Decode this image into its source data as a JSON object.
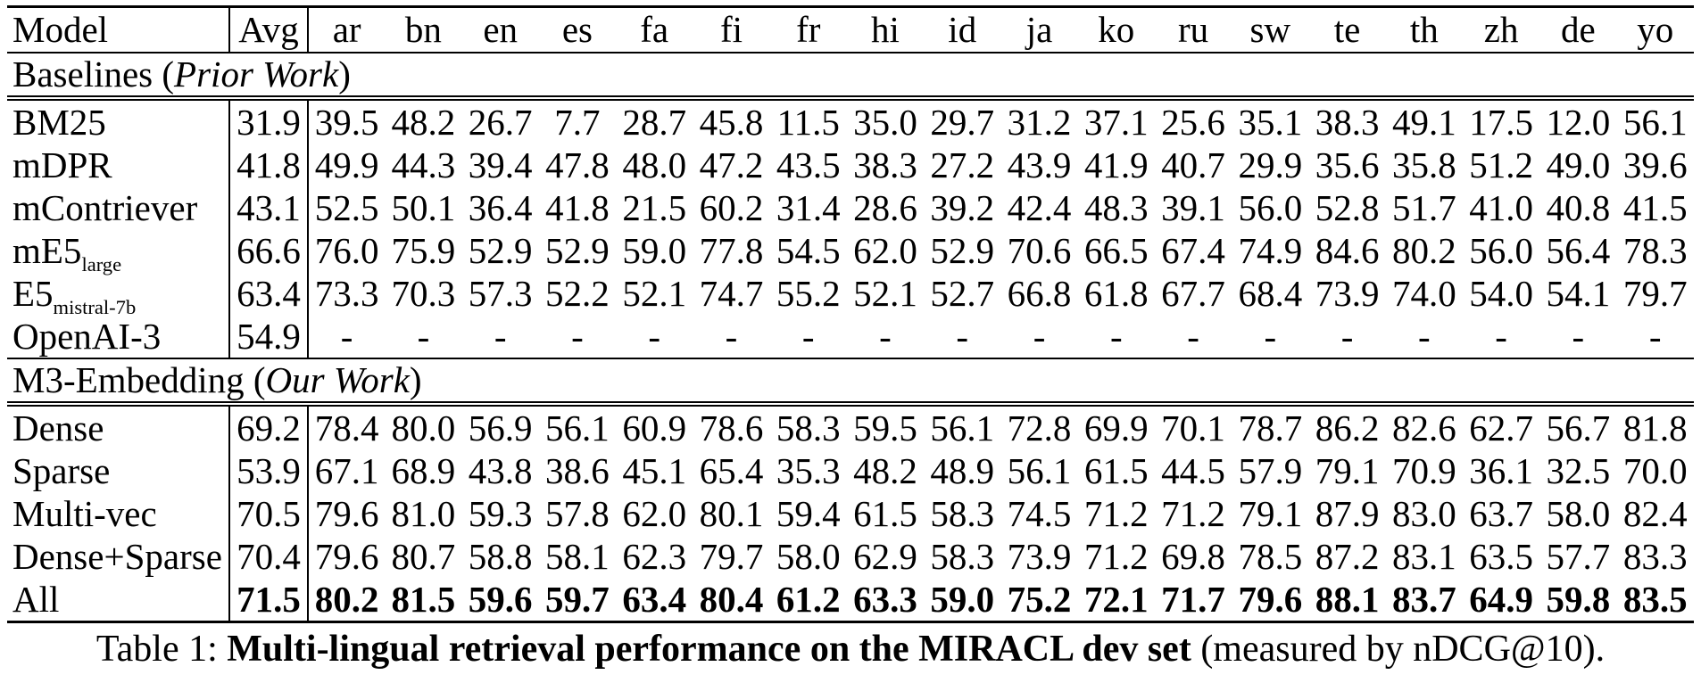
{
  "colors": {
    "text": "#000000",
    "background": "#ffffff",
    "rule": "#000000"
  },
  "table": {
    "columns": [
      "Model",
      "Avg",
      "ar",
      "bn",
      "en",
      "es",
      "fa",
      "fi",
      "fr",
      "hi",
      "id",
      "ja",
      "ko",
      "ru",
      "sw",
      "te",
      "th",
      "zh",
      "de",
      "yo"
    ],
    "sections": [
      {
        "title_pre": "Baselines (",
        "title_italic": "Prior Work",
        "title_post": ")",
        "rows": [
          {
            "model": "BM25",
            "model_sub": "",
            "avg": "31.9",
            "bold": false,
            "values": [
              "39.5",
              "48.2",
              "26.7",
              "7.7",
              "28.7",
              "45.8",
              "11.5",
              "35.0",
              "29.7",
              "31.2",
              "37.1",
              "25.6",
              "35.1",
              "38.3",
              "49.1",
              "17.5",
              "12.0",
              "56.1"
            ]
          },
          {
            "model": "mDPR",
            "model_sub": "",
            "avg": "41.8",
            "bold": false,
            "values": [
              "49.9",
              "44.3",
              "39.4",
              "47.8",
              "48.0",
              "47.2",
              "43.5",
              "38.3",
              "27.2",
              "43.9",
              "41.9",
              "40.7",
              "29.9",
              "35.6",
              "35.8",
              "51.2",
              "49.0",
              "39.6"
            ]
          },
          {
            "model": "mContriever",
            "model_sub": "",
            "avg": "43.1",
            "bold": false,
            "values": [
              "52.5",
              "50.1",
              "36.4",
              "41.8",
              "21.5",
              "60.2",
              "31.4",
              "28.6",
              "39.2",
              "42.4",
              "48.3",
              "39.1",
              "56.0",
              "52.8",
              "51.7",
              "41.0",
              "40.8",
              "41.5"
            ]
          },
          {
            "model": "mE5",
            "model_sub": "large",
            "avg": "66.6",
            "bold": false,
            "values": [
              "76.0",
              "75.9",
              "52.9",
              "52.9",
              "59.0",
              "77.8",
              "54.5",
              "62.0",
              "52.9",
              "70.6",
              "66.5",
              "67.4",
              "74.9",
              "84.6",
              "80.2",
              "56.0",
              "56.4",
              "78.3"
            ]
          },
          {
            "model": "E5",
            "model_sub": "mistral-7b",
            "avg": "63.4",
            "bold": false,
            "values": [
              "73.3",
              "70.3",
              "57.3",
              "52.2",
              "52.1",
              "74.7",
              "55.2",
              "52.1",
              "52.7",
              "66.8",
              "61.8",
              "67.7",
              "68.4",
              "73.9",
              "74.0",
              "54.0",
              "54.1",
              "79.7"
            ]
          },
          {
            "model": "OpenAI-3",
            "model_sub": "",
            "avg": "54.9",
            "bold": false,
            "values": [
              "-",
              "-",
              "-",
              "-",
              "-",
              "-",
              "-",
              "-",
              "-",
              "-",
              "-",
              "-",
              "-",
              "-",
              "-",
              "-",
              "-",
              "-"
            ]
          }
        ]
      },
      {
        "title_pre": "M3-Embedding (",
        "title_italic": "Our Work",
        "title_post": ")",
        "rows": [
          {
            "model": "Dense",
            "model_sub": "",
            "avg": "69.2",
            "bold": false,
            "values": [
              "78.4",
              "80.0",
              "56.9",
              "56.1",
              "60.9",
              "78.6",
              "58.3",
              "59.5",
              "56.1",
              "72.8",
              "69.9",
              "70.1",
              "78.7",
              "86.2",
              "82.6",
              "62.7",
              "56.7",
              "81.8"
            ]
          },
          {
            "model": "Sparse",
            "model_sub": "",
            "avg": "53.9",
            "bold": false,
            "values": [
              "67.1",
              "68.9",
              "43.8",
              "38.6",
              "45.1",
              "65.4",
              "35.3",
              "48.2",
              "48.9",
              "56.1",
              "61.5",
              "44.5",
              "57.9",
              "79.1",
              "70.9",
              "36.1",
              "32.5",
              "70.0"
            ]
          },
          {
            "model": "Multi-vec",
            "model_sub": "",
            "avg": "70.5",
            "bold": false,
            "values": [
              "79.6",
              "81.0",
              "59.3",
              "57.8",
              "62.0",
              "80.1",
              "59.4",
              "61.5",
              "58.3",
              "74.5",
              "71.2",
              "71.2",
              "79.1",
              "87.9",
              "83.0",
              "63.7",
              "58.0",
              "82.4"
            ]
          },
          {
            "model": "Dense+Sparse",
            "model_sub": "",
            "avg": "70.4",
            "bold": false,
            "values": [
              "79.6",
              "80.7",
              "58.8",
              "58.1",
              "62.3",
              "79.7",
              "58.0",
              "62.9",
              "58.3",
              "73.9",
              "71.2",
              "69.8",
              "78.5",
              "87.2",
              "83.1",
              "63.5",
              "57.7",
              "83.3"
            ]
          },
          {
            "model": "All",
            "model_sub": "",
            "avg": "71.5",
            "bold": true,
            "values": [
              "80.2",
              "81.5",
              "59.6",
              "59.7",
              "63.4",
              "80.4",
              "61.2",
              "63.3",
              "59.0",
              "75.2",
              "72.1",
              "71.7",
              "79.6",
              "88.1",
              "83.7",
              "64.9",
              "59.8",
              "83.5"
            ]
          }
        ]
      }
    ]
  },
  "caption": {
    "prefix": "Table 1: ",
    "bold": "Multi-lingual retrieval performance on the MIRACL dev set",
    "suffix": " (measured by nDCG@10)."
  }
}
